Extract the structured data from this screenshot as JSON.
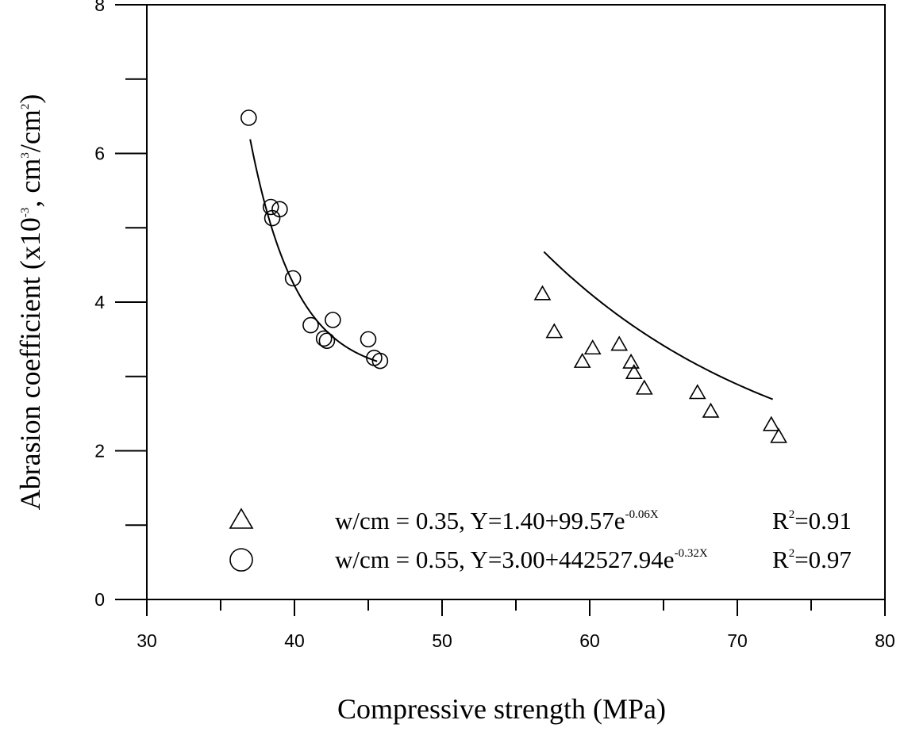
{
  "chart_data": {
    "type": "scatter",
    "xlabel": "Compressive strength (MPa)",
    "ylabel_parts": {
      "prefix": "Abrasion coefficient (x10",
      "exp1": "-3",
      "middle": ", cm",
      "exp2": "3",
      "middle2": "/cm",
      "exp3": "2",
      "suffix": ")"
    },
    "xlim": [
      30,
      80
    ],
    "ylim": [
      0,
      8
    ],
    "x_ticks": [
      "30",
      "40",
      "50",
      "60",
      "70",
      "80"
    ],
    "y_ticks": [
      "0",
      "2",
      "4",
      "6",
      "8"
    ],
    "grid": false,
    "legend_position": "bottom-right",
    "series": [
      {
        "key": "wcm035",
        "marker": "triangle",
        "label_text": "w/cm = 0.35, Y=1.40+99.57e",
        "label_exp": "-0.06X",
        "r2_base": "R",
        "r2_exp": "2",
        "r2_value": "=0.91",
        "fit": {
          "a": 1.4,
          "b": 99.57,
          "c": -0.06,
          "x_range": [
            56.9,
            72.4
          ]
        },
        "points": [
          [
            56.8,
            4.11
          ],
          [
            57.6,
            3.6
          ],
          [
            59.5,
            3.2
          ],
          [
            60.2,
            3.38
          ],
          [
            62.0,
            3.43
          ],
          [
            62.8,
            3.19
          ],
          [
            63.0,
            3.05
          ],
          [
            63.7,
            2.84
          ],
          [
            67.3,
            2.78
          ],
          [
            68.2,
            2.53
          ],
          [
            72.3,
            2.35
          ],
          [
            72.8,
            2.19
          ]
        ]
      },
      {
        "key": "wcm055",
        "marker": "circle",
        "label_text": "w/cm = 0.55, Y=3.00+442527.94e",
        "label_exp": "-0.32X",
        "r2_base": "R",
        "r2_exp": "2",
        "r2_value": "=0.97",
        "fit": {
          "a": 3.0,
          "b": 442527.94,
          "c": -0.32,
          "x_range": [
            37.0,
            45.6
          ]
        },
        "points": [
          [
            36.9,
            6.48
          ],
          [
            38.4,
            5.28
          ],
          [
            38.5,
            5.13
          ],
          [
            39.0,
            5.25
          ],
          [
            39.9,
            4.32
          ],
          [
            41.1,
            3.69
          ],
          [
            42.0,
            3.51
          ],
          [
            42.2,
            3.48
          ],
          [
            42.6,
            3.76
          ],
          [
            45.0,
            3.5
          ],
          [
            45.4,
            3.25
          ],
          [
            45.8,
            3.21
          ]
        ]
      }
    ]
  }
}
